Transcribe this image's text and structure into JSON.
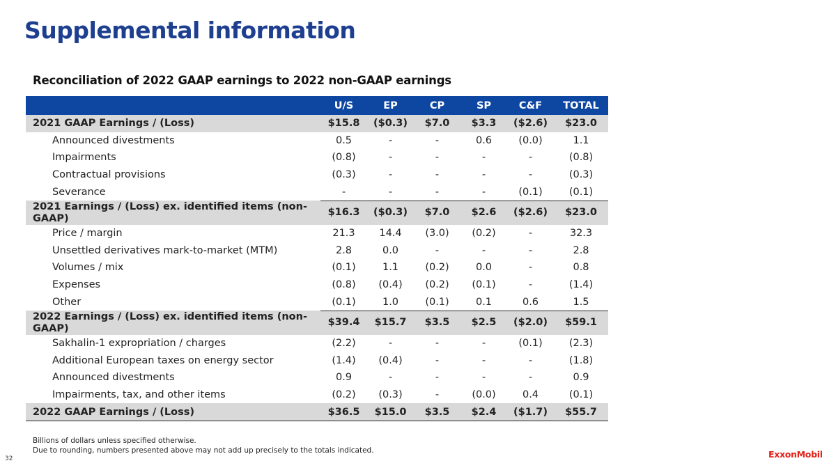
{
  "title": "Supplemental information",
  "subtitle": "Reconciliation of 2022 GAAP earnings to 2022 non-GAAP earnings",
  "columns": [
    "U/S",
    "EP",
    "CP",
    "SP",
    "C&F",
    "TOTAL"
  ],
  "rows": [
    {
      "label": "2021 GAAP Earnings / (Loss)",
      "type": "sub",
      "values": [
        "$15.8",
        "($0.3)",
        "$7.0",
        "$3.3",
        "($2.6)",
        "$23.0"
      ]
    },
    {
      "label": "Announced divestments",
      "type": "item",
      "values": [
        "0.5",
        "-",
        "-",
        "0.6",
        "(0.0)",
        "1.1"
      ]
    },
    {
      "label": "Impairments",
      "type": "item",
      "values": [
        "(0.8)",
        "-",
        "-",
        "-",
        "-",
        "(0.8)"
      ]
    },
    {
      "label": "Contractual provisions",
      "type": "item",
      "values": [
        "(0.3)",
        "-",
        "-",
        "-",
        "-",
        "(0.3)"
      ]
    },
    {
      "label": "Severance",
      "type": "item-rule",
      "values": [
        "-",
        "-",
        "-",
        "-",
        "(0.1)",
        "(0.1)"
      ]
    },
    {
      "label": "2021 Earnings / (Loss) ex. identified items (non-GAAP)",
      "type": "sub-tall",
      "values": [
        "$16.3",
        "($0.3)",
        "$7.0",
        "$2.6",
        "($2.6)",
        "$23.0"
      ]
    },
    {
      "label": "Price / margin",
      "type": "item",
      "values": [
        "21.3",
        "14.4",
        "(3.0)",
        "(0.2)",
        "-",
        "32.3"
      ]
    },
    {
      "label": "Unsettled derivatives mark-to-market (MTM)",
      "type": "item",
      "values": [
        "2.8",
        "0.0",
        "-",
        "-",
        "-",
        "2.8"
      ]
    },
    {
      "label": "Volumes / mix",
      "type": "item",
      "values": [
        "(0.1)",
        "1.1",
        "(0.2)",
        "0.0",
        "-",
        "0.8"
      ]
    },
    {
      "label": "Expenses",
      "type": "item",
      "values": [
        "(0.8)",
        "(0.4)",
        "(0.2)",
        "(0.1)",
        "-",
        "(1.4)"
      ]
    },
    {
      "label": "Other",
      "type": "item-rule",
      "values": [
        "(0.1)",
        "1.0",
        "(0.1)",
        "0.1",
        "0.6",
        "1.5"
      ]
    },
    {
      "label": "2022 Earnings / (Loss) ex. identified items (non-GAAP)",
      "type": "sub-tall",
      "values": [
        "$39.4",
        "$15.7",
        "$3.5",
        "$2.5",
        "($2.0)",
        "$59.1"
      ]
    },
    {
      "label": "Sakhalin-1 expropriation / charges",
      "type": "item",
      "values": [
        "(2.2)",
        "-",
        "-",
        "-",
        "(0.1)",
        "(2.3)"
      ]
    },
    {
      "label": "Additional European taxes on energy sector",
      "type": "item",
      "values": [
        "(1.4)",
        "(0.4)",
        "-",
        "-",
        "-",
        "(1.8)"
      ]
    },
    {
      "label": "Announced divestments",
      "type": "item",
      "values": [
        "0.9",
        "-",
        "-",
        "-",
        "-",
        "0.9"
      ]
    },
    {
      "label": "Impairments, tax, and other items",
      "type": "item",
      "values": [
        "(0.2)",
        "(0.3)",
        "-",
        "(0.0)",
        "0.4",
        "(0.1)"
      ]
    },
    {
      "label": "2022 GAAP Earnings / (Loss)",
      "type": "sub-final",
      "values": [
        "$36.5",
        "$15.0",
        "$3.5",
        "$2.4",
        "($1.7)",
        "$55.7"
      ]
    }
  ],
  "footnotes": [
    "Billions of dollars unless specified otherwise.",
    "Due to rounding, numbers presented above may not add up precisely to the totals indicated."
  ],
  "page_number": "32",
  "logo": "ExxonMobil",
  "colors": {
    "title": "#1e3f8f",
    "header": "#0d47a1",
    "subtotal_bg": "#d9d9d9",
    "logo": "#e2231a"
  }
}
